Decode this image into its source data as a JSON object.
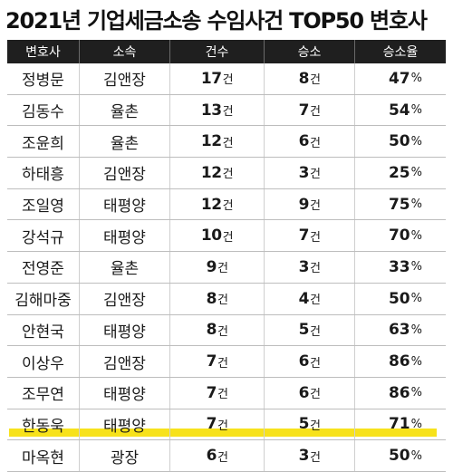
{
  "title": "2021년 기업세금소송 수임사건 TOP50 변호사",
  "unit_case": "건",
  "unit_pct": "%",
  "highlight_color": "#f7e21b",
  "header_bg": "#1f1f1f",
  "table": {
    "headers": [
      "변호사",
      "소속",
      "건수",
      "승소",
      "승소율"
    ],
    "rows": [
      {
        "name": "정병문",
        "firm": "김앤장",
        "cases": "17",
        "wins": "8",
        "rate": "47",
        "highlight": false
      },
      {
        "name": "김동수",
        "firm": "율촌",
        "cases": "13",
        "wins": "7",
        "rate": "54",
        "highlight": false
      },
      {
        "name": "조윤희",
        "firm": "율촌",
        "cases": "12",
        "wins": "6",
        "rate": "50",
        "highlight": false
      },
      {
        "name": "하태흥",
        "firm": "김앤장",
        "cases": "12",
        "wins": "3",
        "rate": "25",
        "highlight": false
      },
      {
        "name": "조일영",
        "firm": "태평양",
        "cases": "12",
        "wins": "9",
        "rate": "75",
        "highlight": false
      },
      {
        "name": "강석규",
        "firm": "태평양",
        "cases": "10",
        "wins": "7",
        "rate": "70",
        "highlight": false
      },
      {
        "name": "전영준",
        "firm": "율촌",
        "cases": "9",
        "wins": "3",
        "rate": "33",
        "highlight": false
      },
      {
        "name": "김해마중",
        "firm": "김앤장",
        "cases": "8",
        "wins": "4",
        "rate": "50",
        "highlight": false
      },
      {
        "name": "안현국",
        "firm": "태평양",
        "cases": "8",
        "wins": "5",
        "rate": "63",
        "highlight": false
      },
      {
        "name": "이상우",
        "firm": "김앤장",
        "cases": "7",
        "wins": "6",
        "rate": "86",
        "highlight": false
      },
      {
        "name": "조무연",
        "firm": "태평양",
        "cases": "7",
        "wins": "6",
        "rate": "86",
        "highlight": false
      },
      {
        "name": "한동욱",
        "firm": "태평양",
        "cases": "7",
        "wins": "5",
        "rate": "71",
        "highlight": true
      },
      {
        "name": "마옥현",
        "firm": "광장",
        "cases": "6",
        "wins": "3",
        "rate": "50",
        "highlight": false
      }
    ]
  }
}
